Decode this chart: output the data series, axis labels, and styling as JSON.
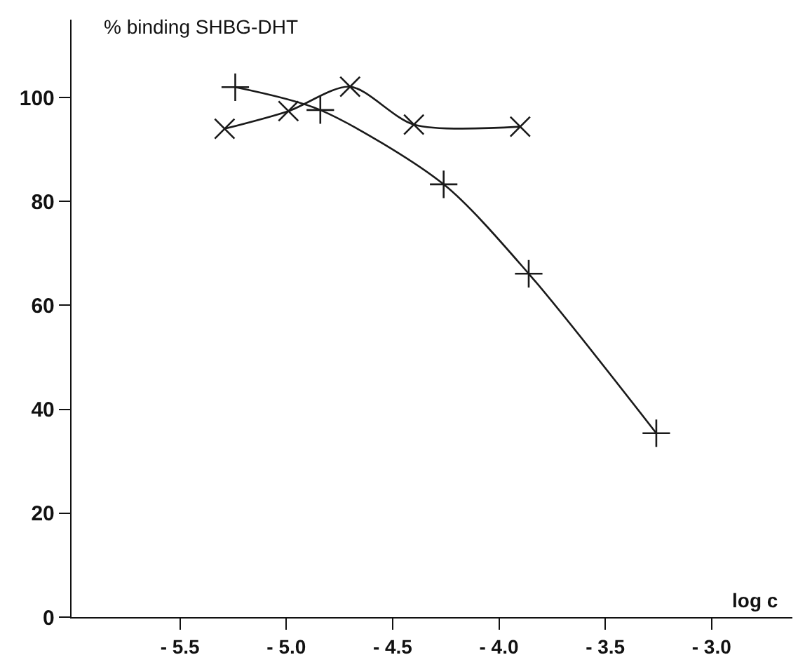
{
  "chart_data": {
    "type": "line",
    "xlabel": "log c",
    "ylabel": "% binding SHBG-DHT",
    "series": [
      {
        "color": "#1a1a1a",
        "marker": "cross",
        "x": [
          -5.24,
          -4.84,
          -4.26,
          -3.86,
          -3.26
        ],
        "values": [
          102,
          97.6,
          83.3,
          66.1,
          35.4
        ]
      },
      {
        "color": "#1a1a1a",
        "marker": "x",
        "x": [
          -5.29,
          -4.99,
          -4.7,
          -4.4,
          -3.9
        ],
        "values": [
          94,
          97.4,
          102.1,
          94.8,
          94.4
        ]
      }
    ],
    "xlim": [
      -6.01,
      -2.62
    ],
    "ylim": [
      0,
      115
    ],
    "xticks": [
      {
        "value": -5.5,
        "label": "- 5.5"
      },
      {
        "value": -5,
        "label": "- 5.0"
      },
      {
        "value": -4.5,
        "label": "- 4.5"
      },
      {
        "value": -4,
        "label": "- 4.0"
      },
      {
        "value": -3.5,
        "label": "- 3.5"
      },
      {
        "value": -3,
        "label": "- 3.0"
      }
    ],
    "yticks": [
      0,
      20,
      40,
      60,
      80,
      100
    ],
    "grid": false,
    "line_style": "solid"
  }
}
